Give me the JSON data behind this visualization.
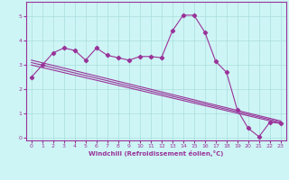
{
  "xlabel": "Windchill (Refroidissement éolien,°C)",
  "background_color": "#cef5f5",
  "line_color": "#993399",
  "xlim": [
    -0.5,
    23.5
  ],
  "ylim": [
    -0.1,
    5.6
  ],
  "yticks": [
    0,
    1,
    2,
    3,
    4,
    5
  ],
  "xticks": [
    0,
    1,
    2,
    3,
    4,
    5,
    6,
    7,
    8,
    9,
    10,
    11,
    12,
    13,
    14,
    15,
    16,
    17,
    18,
    19,
    20,
    21,
    22,
    23
  ],
  "series": [
    {
      "x": [
        0,
        1,
        2,
        3,
        4,
        5,
        6,
        7,
        8,
        9,
        10,
        11,
        12,
        13,
        14,
        15,
        16,
        17,
        18,
        19,
        20,
        21,
        22,
        23
      ],
      "y": [
        2.5,
        3.0,
        3.5,
        3.7,
        3.6,
        3.2,
        3.7,
        3.4,
        3.3,
        3.2,
        3.35,
        3.35,
        3.3,
        4.4,
        5.05,
        5.05,
        4.35,
        3.15,
        2.7,
        1.15,
        0.4,
        0.05,
        0.65,
        0.6
      ]
    },
    {
      "x": [
        0,
        23
      ],
      "y": [
        3.0,
        0.6
      ]
    },
    {
      "x": [
        0,
        23
      ],
      "y": [
        3.1,
        0.65
      ]
    },
    {
      "x": [
        0,
        23
      ],
      "y": [
        3.2,
        0.7
      ]
    }
  ],
  "marker": "D",
  "markersize": 2.2,
  "linewidth": 0.8,
  "tick_fontsize": 4.5,
  "xlabel_fontsize": 5.0
}
